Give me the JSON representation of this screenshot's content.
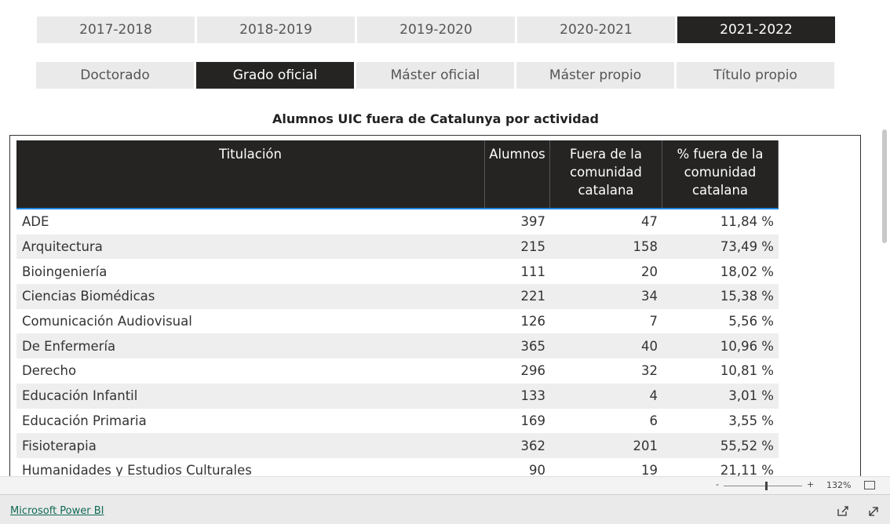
{
  "years": {
    "options": [
      "2017-2018",
      "2018-2019",
      "2019-2020",
      "2020-2021",
      "2021-2022"
    ],
    "selected": 4
  },
  "programs": {
    "options": [
      "Doctorado",
      "Grado oficial",
      "Máster oficial",
      "Máster propio",
      "Título propio"
    ],
    "selected": 1
  },
  "title": "Alumnos UIC fuera de Catalunya por actividad",
  "table": {
    "headers": [
      "Titulación",
      "Alumnos",
      "Fuera de la comunidad catalana",
      "% fuera de la comunidad catalana"
    ],
    "rows": [
      [
        "ADE",
        "397",
        "47",
        "11,84 %"
      ],
      [
        "Arquitectura",
        "215",
        "158",
        "73,49 %"
      ],
      [
        "Bioingeniería",
        "111",
        "20",
        "18,02 %"
      ],
      [
        "Ciencias Biomédicas",
        "221",
        "34",
        "15,38 %"
      ],
      [
        "Comunicación Audiovisual",
        "126",
        "7",
        "5,56 %"
      ],
      [
        "De Enfermería",
        "365",
        "40",
        "10,96 %"
      ],
      [
        "Derecho",
        "296",
        "32",
        "10,81 %"
      ],
      [
        "Educación Infantil",
        "133",
        "4",
        "3,01 %"
      ],
      [
        "Educación Primaria",
        "169",
        "6",
        "3,55 %"
      ],
      [
        "Fisioterapia",
        "362",
        "201",
        "55,52 %"
      ],
      [
        "Humanidades y Estudios Culturales",
        "90",
        "19",
        "21,11 %"
      ]
    ]
  },
  "zoom": {
    "minus": "-",
    "plus": "+",
    "level": "132%"
  },
  "footer": {
    "link": "Microsoft Power BI"
  }
}
